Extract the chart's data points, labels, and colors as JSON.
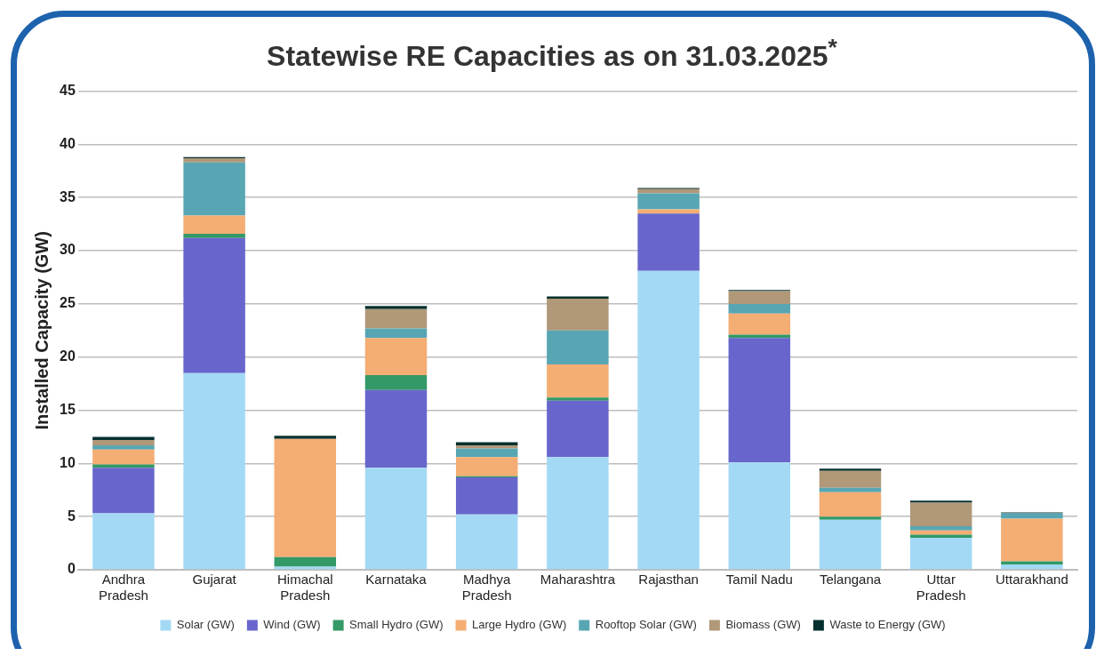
{
  "chart_data": {
    "type": "bar",
    "title": "Statewise RE Capacities as on 31.03.2025$^{*}$",
    "ylabel": "Installed Capacity (GW)",
    "categories": [
      "Andhra Pradesh",
      "Gujarat",
      "Himachal Pradesh",
      "Karnataka",
      "Madhya Pradesh",
      "Maharashtra",
      "Rajasthan",
      "Tamil Nadu",
      "Telangana",
      "Uttar Pradesh",
      "Uttarakhand"
    ],
    "stacked": true,
    "ylim": [
      0,
      45
    ],
    "yticks": [
      0,
      5,
      10,
      15,
      20,
      25,
      30,
      35,
      40,
      45
    ],
    "grid": "y",
    "legend": "bottom",
    "series": [
      {
        "name": "Solar (GW)",
        "color": "#a3d9f5",
        "values": [
          5.3,
          18.5,
          0.3,
          9.6,
          5.2,
          10.6,
          28.1,
          10.1,
          4.7,
          3.0,
          0.5
        ]
      },
      {
        "name": "Wind (GW)",
        "color": "#6866cc",
        "values": [
          4.3,
          12.7,
          0,
          7.3,
          3.5,
          5.3,
          5.4,
          11.7,
          0,
          0,
          0
        ]
      },
      {
        "name": "Small Hydro (GW)",
        "color": "#339966",
        "values": [
          0.3,
          0.4,
          0.9,
          1.4,
          0.1,
          0.3,
          null,
          0.3,
          0.3,
          0.3,
          0.3
        ]
      },
      {
        "name": "Large Hydro (GW)",
        "color": "#f4ad73",
        "values": [
          1.4,
          1.7,
          11.1,
          3.5,
          1.8,
          3.1,
          0.4,
          2.0,
          2.3,
          0.4,
          4.0
        ]
      },
      {
        "name": "Rooftop Solar (GW)",
        "color": "#58a6b3",
        "values": [
          0.4,
          5.0,
          0,
          0.9,
          0.8,
          3.2,
          1.5,
          0.9,
          0.4,
          0.4,
          0.5
        ]
      },
      {
        "name": "Biomass (GW)",
        "color": "#b09878",
        "values": [
          0.5,
          0.4,
          0,
          1.8,
          0.3,
          3.0,
          0.4,
          1.2,
          1.6,
          2.2,
          0
        ]
      },
      {
        "name": "Waste to Energy (GW)",
        "color": "#06302f",
        "values": [
          0.3,
          0.1,
          0.3,
          0.3,
          0.3,
          0.2,
          0.1,
          0.1,
          0.2,
          0.2,
          0.1
        ]
      }
    ]
  }
}
